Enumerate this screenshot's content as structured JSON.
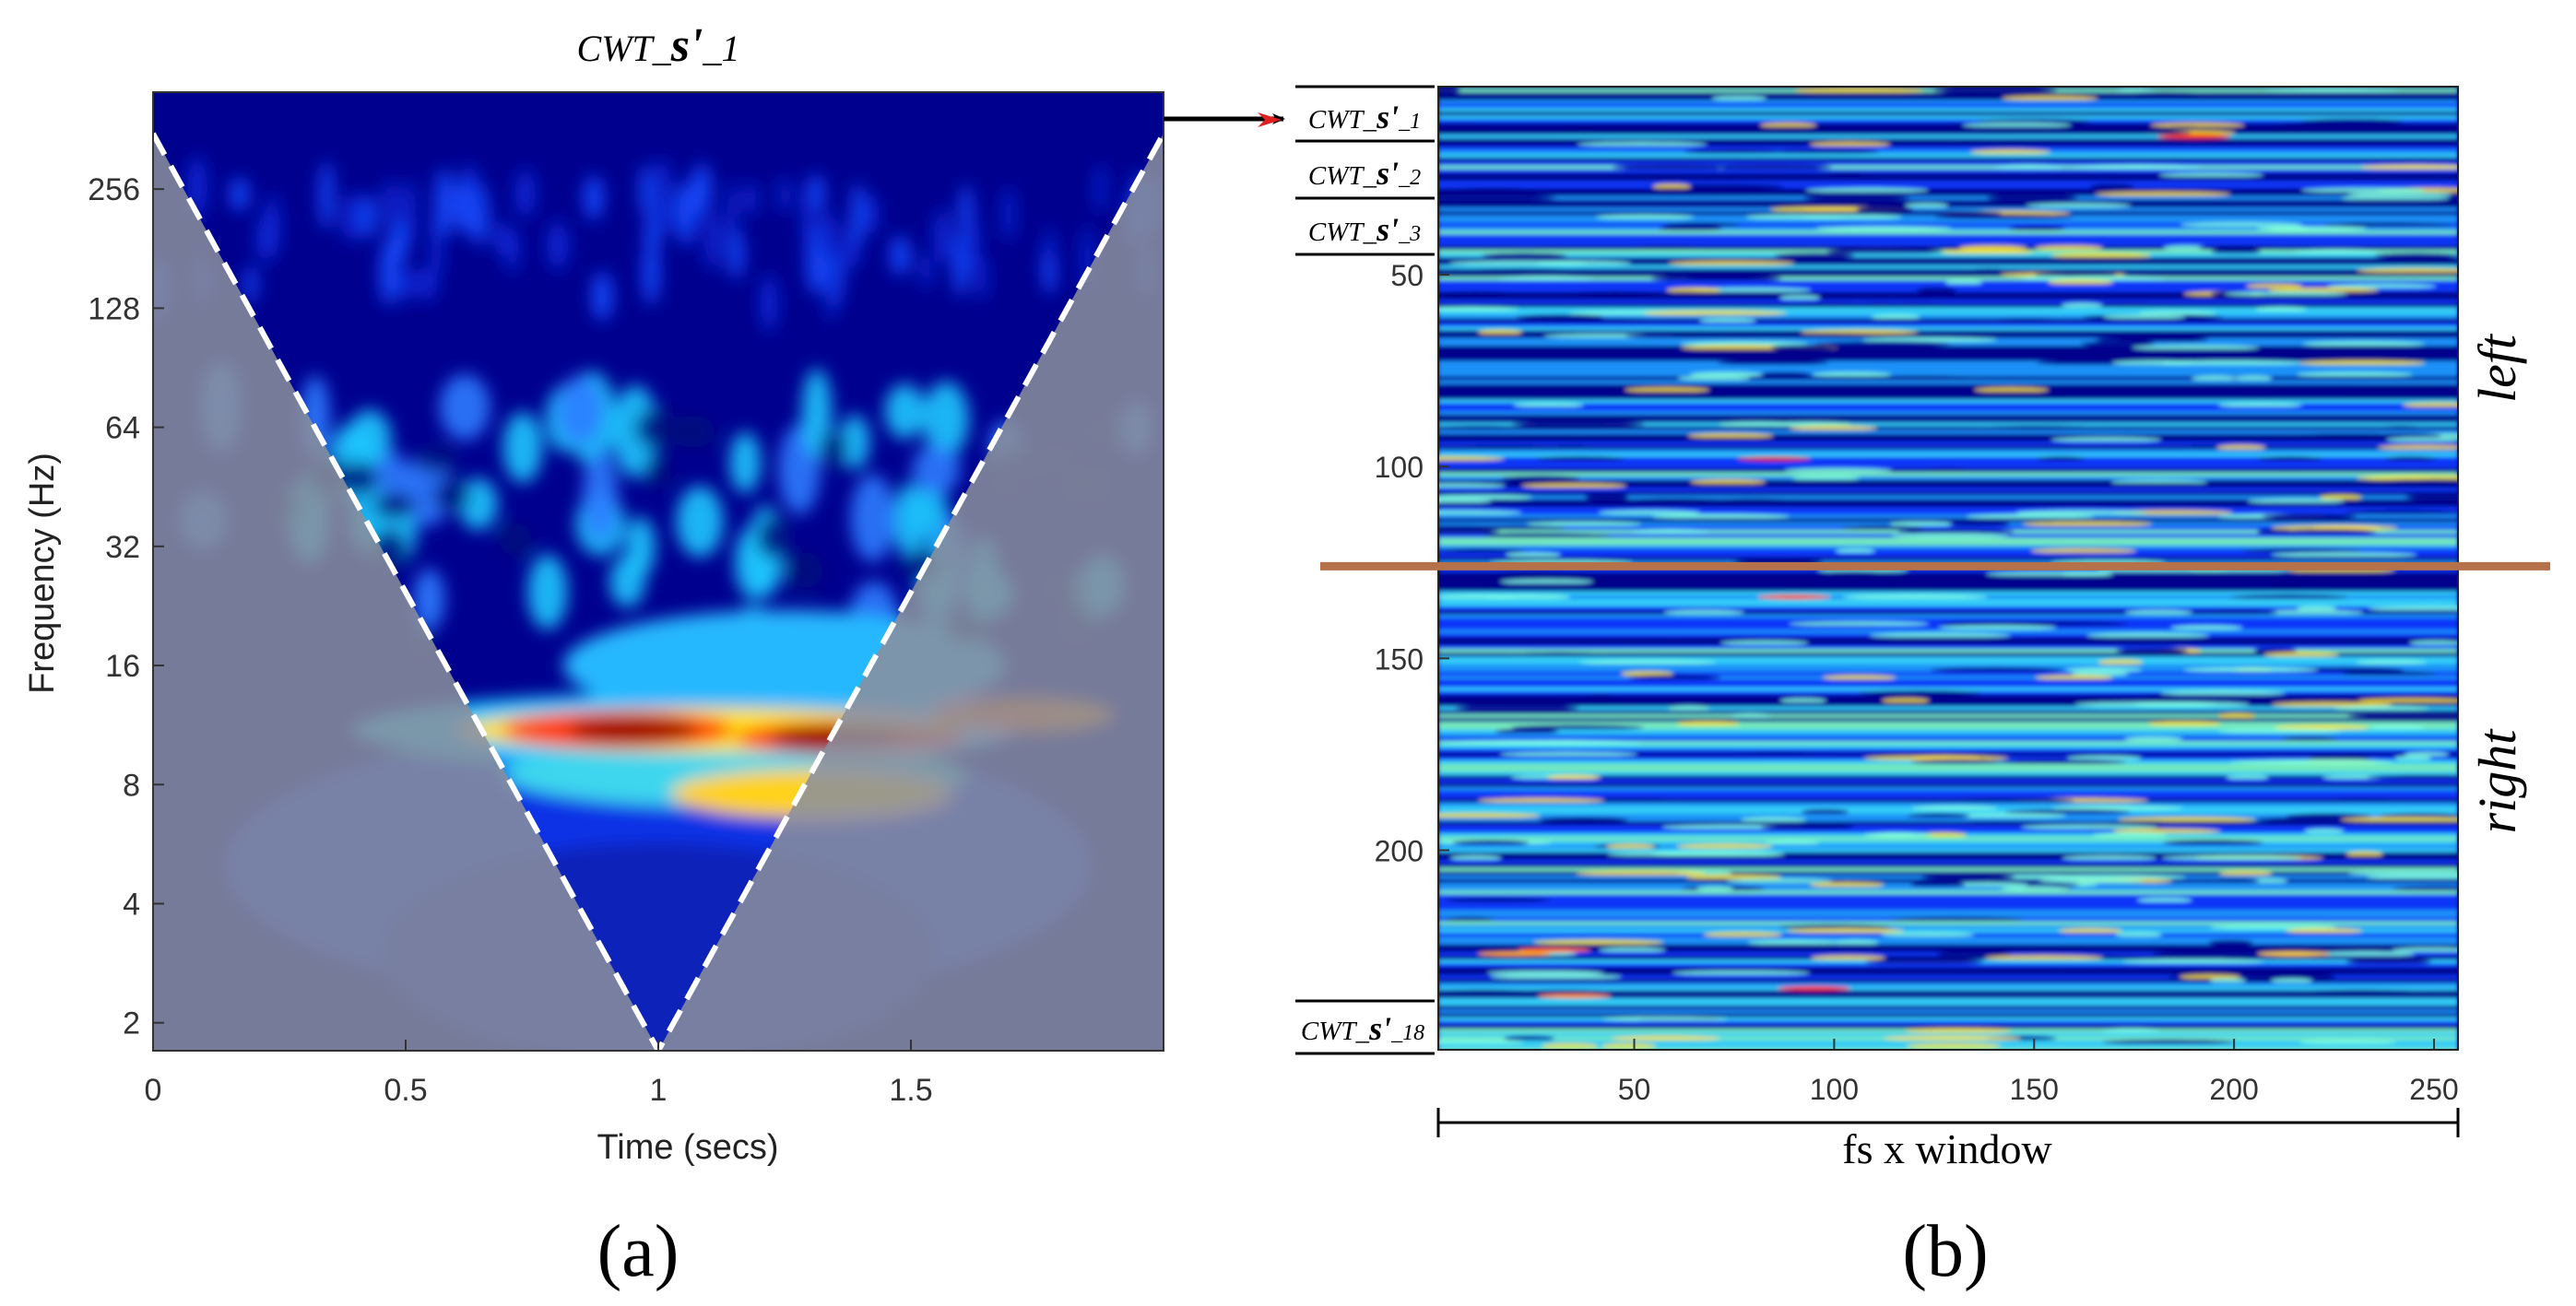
{
  "chart_data": [
    {
      "type": "heatmap",
      "panel_label": "(a)",
      "title": {
        "prefix": "CWT_",
        "var": "s'",
        "suffix": "_1"
      },
      "xlabel": "Time (secs)",
      "ylabel": "Frequency (Hz)",
      "xlim": [
        0,
        2
      ],
      "ylim": [
        1.7,
        450
      ],
      "yscale": "log2",
      "x_ticks": [
        "0",
        "0.5",
        "1",
        "1.5"
      ],
      "x_tick_values": [
        0,
        0.5,
        1,
        1.5
      ],
      "y_ticks": [
        "2",
        "4",
        "8",
        "16",
        "32",
        "64",
        "128",
        "256"
      ],
      "y_tick_values": [
        2,
        4,
        8,
        16,
        32,
        64,
        128,
        256
      ],
      "cone_of_influence": "dashed white boundary, shaded region outside",
      "hotspots": [
        {
          "time": 0.95,
          "frequency_hz": 11,
          "level": "max"
        },
        {
          "time": 1.35,
          "frequency_hz": 10.5,
          "level": "max"
        },
        {
          "time": 1.7,
          "frequency_hz": 12,
          "level": "high"
        }
      ]
    },
    {
      "type": "heatmap",
      "panel_label": "(b)",
      "xlabel": "fs x window",
      "xlim": [
        1,
        256
      ],
      "ylim": [
        1,
        252
      ],
      "x_ticks": [
        "50",
        "100",
        "150",
        "200",
        "250"
      ],
      "x_tick_values": [
        50,
        100,
        150,
        200,
        250
      ],
      "y_ticks": [
        "50",
        "100",
        "150",
        "200"
      ],
      "y_tick_values": [
        50,
        100,
        150,
        200
      ],
      "row_labels": [
        {
          "prefix": "CWT_",
          "var": "s'",
          "suffix": "_1"
        },
        {
          "prefix": "CWT_",
          "var": "s'",
          "suffix": "_2"
        },
        {
          "prefix": "CWT_",
          "var": "s'",
          "suffix": "_3"
        },
        {
          "prefix": "CWT_",
          "var": "s'",
          "suffix": "_18"
        }
      ],
      "divider_row": 126,
      "divider_color": "#b5714a",
      "group_labels": [
        "left",
        "right"
      ]
    }
  ]
}
